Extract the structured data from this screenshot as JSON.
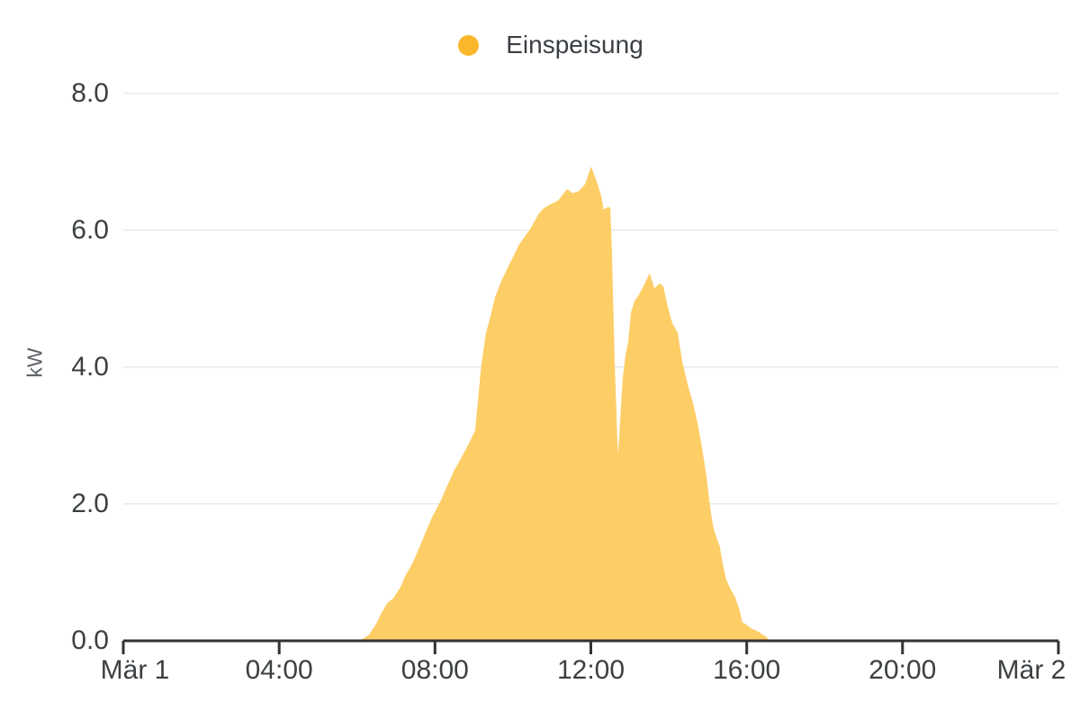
{
  "page": {
    "background": "#FFFFFF"
  },
  "legend": {
    "position": "top-center",
    "items": [
      {
        "label": "Einspeisung",
        "marker": "circle-icon",
        "color": "#FBB72C"
      }
    ]
  },
  "colors": {
    "series": "#FBB72C",
    "area_fill": "#FDCD66",
    "axis_line": "#333333",
    "gridline": "#E9E9E9",
    "tick_label": "#3C4043",
    "axis_title": "#5F6368",
    "legend_text": "#3A3F45"
  },
  "chart_data": {
    "type": "area",
    "title": "",
    "xlabel": "",
    "ylabel": "kW",
    "x_unit": "hours_since_start_of_Mar_1",
    "xlim": [
      0,
      24
    ],
    "ylim": [
      0,
      8.3
    ],
    "grid": "horizontal-only",
    "legend_position": "top-center",
    "x_ticks": [
      {
        "t": 0,
        "label": "Mär 1",
        "shift": 13
      },
      {
        "t": 4,
        "label": "04:00",
        "shift": 0
      },
      {
        "t": 8,
        "label": "08:00",
        "shift": 0
      },
      {
        "t": 12,
        "label": "12:00",
        "shift": 0
      },
      {
        "t": 16,
        "label": "16:00",
        "shift": 0
      },
      {
        "t": 20,
        "label": "20:00",
        "shift": 0
      },
      {
        "t": 24,
        "label": "Mär 2",
        "shift": -30
      }
    ],
    "y_ticks": [
      {
        "v": 0,
        "label": "0.0"
      },
      {
        "v": 2,
        "label": "2.0"
      },
      {
        "v": 4,
        "label": "4.0"
      },
      {
        "v": 6,
        "label": "6.0"
      },
      {
        "v": 8,
        "label": "8.0"
      }
    ],
    "series": [
      {
        "name": "Einspeisung",
        "color": "#FBB72C",
        "fill": "#FDCD66",
        "unit": "kW",
        "points": [
          [
            6.07,
            0.0
          ],
          [
            6.31,
            0.09
          ],
          [
            6.49,
            0.25
          ],
          [
            6.61,
            0.39
          ],
          [
            6.77,
            0.55
          ],
          [
            6.93,
            0.62
          ],
          [
            7.11,
            0.78
          ],
          [
            7.23,
            0.94
          ],
          [
            7.41,
            1.12
          ],
          [
            7.58,
            1.34
          ],
          [
            7.74,
            1.56
          ],
          [
            7.92,
            1.8
          ],
          [
            8.15,
            2.05
          ],
          [
            8.34,
            2.3
          ],
          [
            8.5,
            2.5
          ],
          [
            8.68,
            2.68
          ],
          [
            8.85,
            2.86
          ],
          [
            9.03,
            3.07
          ],
          [
            9.1,
            3.49
          ],
          [
            9.17,
            3.93
          ],
          [
            9.24,
            4.23
          ],
          [
            9.31,
            4.5
          ],
          [
            9.42,
            4.73
          ],
          [
            9.54,
            5.02
          ],
          [
            9.72,
            5.28
          ],
          [
            9.89,
            5.48
          ],
          [
            10.16,
            5.79
          ],
          [
            10.46,
            6.03
          ],
          [
            10.65,
            6.23
          ],
          [
            10.79,
            6.32
          ],
          [
            10.97,
            6.38
          ],
          [
            11.16,
            6.43
          ],
          [
            11.39,
            6.6
          ],
          [
            11.53,
            6.54
          ],
          [
            11.69,
            6.57
          ],
          [
            11.85,
            6.67
          ],
          [
            12.01,
            6.93
          ],
          [
            12.15,
            6.71
          ],
          [
            12.26,
            6.51
          ],
          [
            12.33,
            6.3
          ],
          [
            12.45,
            6.34
          ],
          [
            12.5,
            6.32
          ],
          [
            12.54,
            5.7
          ],
          [
            12.61,
            4.1
          ],
          [
            12.68,
            2.95
          ],
          [
            12.7,
            2.72
          ],
          [
            12.75,
            3.2
          ],
          [
            12.82,
            3.85
          ],
          [
            12.89,
            4.17
          ],
          [
            12.96,
            4.37
          ],
          [
            13.03,
            4.8
          ],
          [
            13.12,
            4.96
          ],
          [
            13.23,
            5.05
          ],
          [
            13.35,
            5.18
          ],
          [
            13.51,
            5.37
          ],
          [
            13.63,
            5.15
          ],
          [
            13.77,
            5.22
          ],
          [
            13.86,
            5.18
          ],
          [
            13.97,
            4.89
          ],
          [
            14.09,
            4.64
          ],
          [
            14.23,
            4.5
          ],
          [
            14.34,
            4.1
          ],
          [
            14.5,
            3.71
          ],
          [
            14.62,
            3.48
          ],
          [
            14.74,
            3.18
          ],
          [
            14.85,
            2.83
          ],
          [
            14.97,
            2.39
          ],
          [
            15.04,
            2.05
          ],
          [
            15.1,
            1.8
          ],
          [
            15.15,
            1.64
          ],
          [
            15.24,
            1.48
          ],
          [
            15.31,
            1.38
          ],
          [
            15.38,
            1.14
          ],
          [
            15.47,
            0.9
          ],
          [
            15.59,
            0.75
          ],
          [
            15.7,
            0.64
          ],
          [
            15.82,
            0.44
          ],
          [
            15.89,
            0.27
          ],
          [
            15.96,
            0.25
          ],
          [
            16.12,
            0.18
          ],
          [
            16.31,
            0.13
          ],
          [
            16.49,
            0.06
          ],
          [
            16.6,
            0.0
          ]
        ]
      }
    ]
  }
}
